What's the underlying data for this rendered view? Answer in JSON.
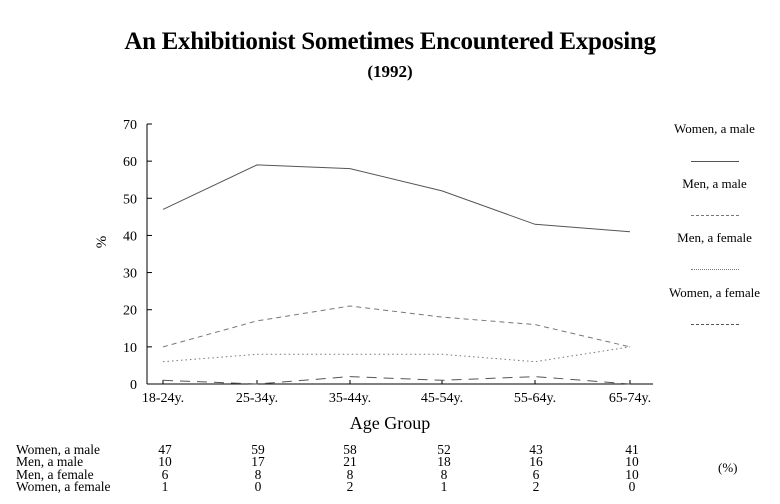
{
  "title": "An Exhibitionist Sometimes Encountered Exposing",
  "subtitle": "(1992)",
  "unit_note": "(%)",
  "chart_data": {
    "type": "line",
    "categories": [
      "18-24y.",
      "25-34y.",
      "35-44y.",
      "45-54y.",
      "55-64y.",
      "65-74y."
    ],
    "xlabel": "Age Group",
    "ylabel": "%",
    "ylim": [
      0,
      70
    ],
    "yticks": [
      0,
      10,
      20,
      30,
      40,
      50,
      60,
      70
    ],
    "grid": false,
    "legend_position": "right",
    "series": [
      {
        "name": "Women, a male",
        "values": [
          47,
          59,
          58,
          52,
          43,
          41
        ],
        "color": "#555555",
        "style": "solid"
      },
      {
        "name": "Men, a male",
        "values": [
          10,
          17,
          21,
          18,
          16,
          10
        ],
        "color": "#777777",
        "style": "dashed"
      },
      {
        "name": "Men, a female",
        "values": [
          6,
          8,
          8,
          8,
          6,
          10
        ],
        "color": "#777777",
        "style": "dotted"
      },
      {
        "name": "Women, a female",
        "values": [
          1,
          0,
          2,
          1,
          2,
          0
        ],
        "color": "#555555",
        "style": "longdash"
      }
    ]
  }
}
